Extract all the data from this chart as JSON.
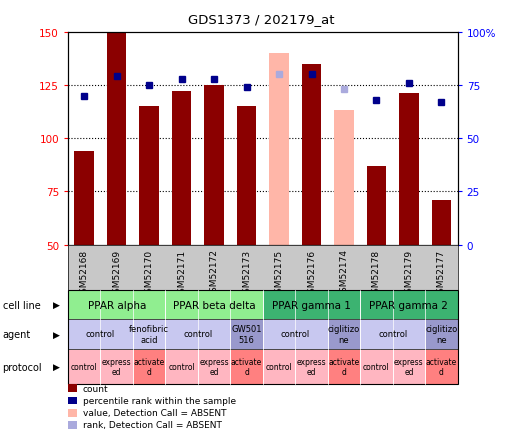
{
  "title": "GDS1373 / 202179_at",
  "samples": [
    "GSM52168",
    "GSM52169",
    "GSM52170",
    "GSM52171",
    "GSM52172",
    "GSM52173",
    "GSM52175",
    "GSM52176",
    "GSM52174",
    "GSM52178",
    "GSM52179",
    "GSM52177"
  ],
  "bar_values": [
    94,
    150,
    115,
    122,
    125,
    115,
    140,
    135,
    113,
    87,
    121,
    71
  ],
  "bar_absent": [
    false,
    false,
    false,
    false,
    false,
    false,
    true,
    false,
    true,
    false,
    false,
    false
  ],
  "rank_values": [
    70,
    79,
    75,
    78,
    78,
    74,
    80,
    80,
    73,
    68,
    76,
    67
  ],
  "rank_absent": [
    false,
    false,
    false,
    false,
    false,
    false,
    true,
    false,
    true,
    false,
    false,
    false
  ],
  "bar_color_present": "#8B0000",
  "bar_color_absent": "#FFB6A8",
  "rank_color_present": "#00008B",
  "rank_color_absent": "#AAAADD",
  "ymin": 50,
  "ymax": 150,
  "y2min": 0,
  "y2max": 100,
  "cell_lines": [
    {
      "label": "PPAR alpha",
      "start": 0,
      "end": 3,
      "color": "#90EE90"
    },
    {
      "label": "PPAR beta delta",
      "start": 3,
      "end": 6,
      "color": "#90EE90"
    },
    {
      "label": "PPAR gamma 1",
      "start": 6,
      "end": 9,
      "color": "#3CB371"
    },
    {
      "label": "PPAR gamma 2",
      "start": 9,
      "end": 12,
      "color": "#3CB371"
    }
  ],
  "agents": [
    {
      "label": "control",
      "start": 0,
      "end": 2,
      "color": "#C8C8F0"
    },
    {
      "label": "fenofibric\nacid",
      "start": 2,
      "end": 3,
      "color": "#C8C8F0"
    },
    {
      "label": "control",
      "start": 3,
      "end": 5,
      "color": "#C8C8F0"
    },
    {
      "label": "GW501\n516",
      "start": 5,
      "end": 6,
      "color": "#9999CC"
    },
    {
      "label": "control",
      "start": 6,
      "end": 8,
      "color": "#C8C8F0"
    },
    {
      "label": "ciglitizo\nne",
      "start": 8,
      "end": 9,
      "color": "#9999CC"
    },
    {
      "label": "control",
      "start": 9,
      "end": 11,
      "color": "#C8C8F0"
    },
    {
      "label": "ciglitizo\nne",
      "start": 11,
      "end": 12,
      "color": "#9999CC"
    }
  ],
  "protocols": [
    {
      "label": "control",
      "start": 0,
      "end": 1,
      "color": "#FFB6C1"
    },
    {
      "label": "express\ned",
      "start": 1,
      "end": 2,
      "color": "#FFB6C1"
    },
    {
      "label": "activate\nd",
      "start": 2,
      "end": 3,
      "color": "#FF8080"
    },
    {
      "label": "control",
      "start": 3,
      "end": 4,
      "color": "#FFB6C1"
    },
    {
      "label": "express\ned",
      "start": 4,
      "end": 5,
      "color": "#FFB6C1"
    },
    {
      "label": "activate\nd",
      "start": 5,
      "end": 6,
      "color": "#FF8080"
    },
    {
      "label": "control",
      "start": 6,
      "end": 7,
      "color": "#FFB6C1"
    },
    {
      "label": "express\ned",
      "start": 7,
      "end": 8,
      "color": "#FFB6C1"
    },
    {
      "label": "activate\nd",
      "start": 8,
      "end": 9,
      "color": "#FF8080"
    },
    {
      "label": "control",
      "start": 9,
      "end": 10,
      "color": "#FFB6C1"
    },
    {
      "label": "express\ned",
      "start": 10,
      "end": 11,
      "color": "#FFB6C1"
    },
    {
      "label": "activate\nd",
      "start": 11,
      "end": 12,
      "color": "#FF8080"
    }
  ],
  "legend_items": [
    {
      "label": "count",
      "color": "#8B0000"
    },
    {
      "label": "percentile rank within the sample",
      "color": "#00008B"
    },
    {
      "label": "value, Detection Call = ABSENT",
      "color": "#FFB6A8"
    },
    {
      "label": "rank, Detection Call = ABSENT",
      "color": "#AAAADD"
    }
  ],
  "yticks_left": [
    50,
    75,
    100,
    125,
    150
  ],
  "yticks_right": [
    0,
    25,
    50,
    75,
    100
  ],
  "bg_sample_labels": "#C8C8C8"
}
